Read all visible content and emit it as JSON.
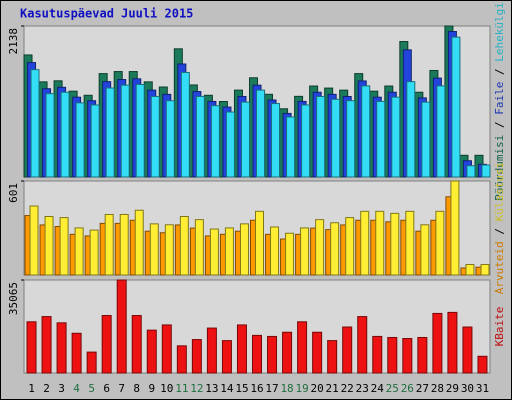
{
  "title": "Kasutuspäevad Juuli 2015",
  "categories": [
    "1",
    "2",
    "3",
    "4",
    "5",
    "6",
    "7",
    "8",
    "9",
    "10",
    "11",
    "12",
    "13",
    "14",
    "15",
    "16",
    "17",
    "18",
    "19",
    "20",
    "21",
    "22",
    "23",
    "24",
    "25",
    "26",
    "27",
    "28",
    "29",
    "30",
    "31"
  ],
  "category_colors": [
    "#000000",
    "#000000",
    "#000000",
    "#207040",
    "#207040",
    "#000000",
    "#000000",
    "#000000",
    "#000000",
    "#000000",
    "#207040",
    "#207040",
    "#000000",
    "#000000",
    "#000000",
    "#000000",
    "#000000",
    "#207040",
    "#207040",
    "#000000",
    "#000000",
    "#000000",
    "#000000",
    "#000000",
    "#207040",
    "#207040",
    "#000000",
    "#000000",
    "#000000",
    "#000000",
    "#000000"
  ],
  "legend_separator": " / ",
  "chart_data": [
    {
      "type": "bar",
      "ylim": [
        0,
        2138
      ],
      "yticks": [
        2138
      ],
      "series": [
        {
          "name": "Pöördumisi",
          "color": "#1a7a5a",
          "values": [
            1728,
            1347,
            1362,
            1215,
            1157,
            1464,
            1493,
            1493,
            1347,
            1274,
            1815,
            1303,
            1157,
            1069,
            1230,
            1405,
            1171,
            966,
            1142,
            1288,
            1259,
            1230,
            1464,
            1215,
            1288,
            1918,
            1200,
            1508,
            2138,
            307,
            307
          ]
        },
        {
          "name": "Faile",
          "color": "#2244dd",
          "values": [
            1620,
            1250,
            1270,
            1130,
            1080,
            1350,
            1380,
            1390,
            1230,
            1170,
            1600,
            1210,
            1070,
            990,
            1140,
            1300,
            1090,
            900,
            1070,
            1200,
            1170,
            1140,
            1360,
            1130,
            1200,
            1800,
            1120,
            1400,
            2060,
            230,
            180
          ]
        },
        {
          "name": "Lehekülgi",
          "color": "#33ddf5",
          "values": [
            1520,
            1180,
            1200,
            1050,
            1020,
            1260,
            1300,
            1310,
            1140,
            1080,
            1480,
            1140,
            1010,
            920,
            1060,
            1230,
            1040,
            850,
            1020,
            1140,
            1100,
            1080,
            1290,
            1070,
            1130,
            1350,
            1060,
            1290,
            1980,
            160,
            170
          ]
        }
      ]
    },
    {
      "type": "bar",
      "ylim": [
        0,
        601
      ],
      "yticks": [
        601
      ],
      "series": [
        {
          "name": "Arvuteid",
          "color": "#ff9900",
          "values": [
            380,
            320,
            310,
            260,
            250,
            330,
            330,
            350,
            280,
            270,
            320,
            300,
            250,
            260,
            280,
            350,
            260,
            230,
            260,
            300,
            290,
            320,
            350,
            350,
            340,
            350,
            280,
            350,
            500,
            45,
            50
          ]
        },
        {
          "name": "Külastusi",
          "color": "#ffee33",
          "values": [
            441,
            374,
            367,
            301,
            287,
            387,
            387,
            414,
            327,
            321,
            374,
            354,
            294,
            301,
            327,
            407,
            307,
            267,
            301,
            354,
            334,
            367,
            407,
            407,
            394,
            407,
            321,
            407,
            601,
            67,
            67
          ]
        }
      ]
    },
    {
      "type": "bar",
      "ylim": [
        0,
        35065
      ],
      "yticks": [
        35065
      ],
      "series": [
        {
          "name": "KBaite",
          "color": "#ee1111",
          "values": [
            19306,
            21276,
            18912,
            14972,
            7880,
            21670,
            35065,
            21670,
            16154,
            18124,
            10244,
            12608,
            16942,
            12214,
            18124,
            14184,
            13790,
            15366,
            19306,
            15366,
            12214,
            17336,
            21276,
            13790,
            13396,
            13002,
            13396,
            22458,
            22852,
            17336,
            6304
          ]
        }
      ]
    }
  ]
}
